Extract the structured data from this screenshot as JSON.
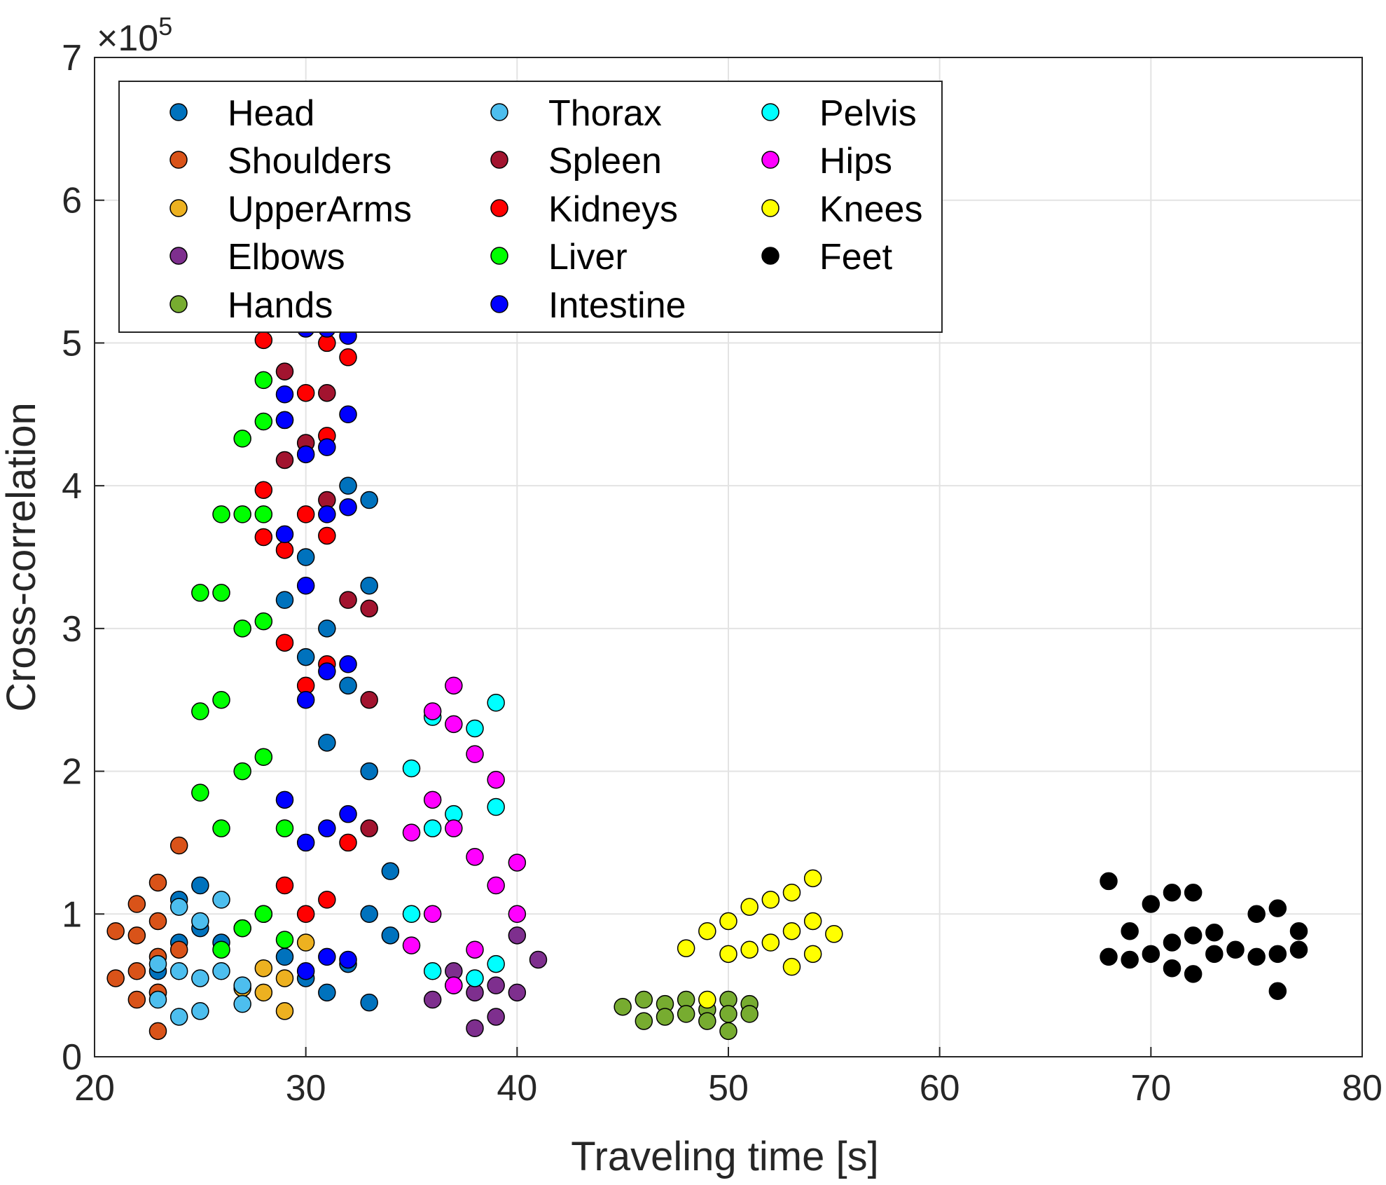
{
  "chart_data": {
    "type": "scatter",
    "title": "",
    "xlabel": "Traveling time [s]",
    "ylabel": "Cross-correlation",
    "y_exponent_label": "×10",
    "y_exponent_power": "5",
    "xlim": [
      20,
      80
    ],
    "ylim": [
      0,
      7
    ],
    "grid": true,
    "legend_position": "top-left",
    "x_ticks": [
      "20",
      "30",
      "40",
      "50",
      "60",
      "70",
      "80"
    ],
    "x_tick_values": [
      20,
      30,
      40,
      50,
      60,
      70,
      80
    ],
    "y_ticks": [
      "0",
      "1",
      "2",
      "3",
      "4",
      "5",
      "6",
      "7"
    ],
    "y_tick_values": [
      0,
      1,
      2,
      3,
      4,
      5,
      6,
      7
    ],
    "series": [
      {
        "name": "Head",
        "color": "#0072BD",
        "x": [
          23,
          23,
          24,
          24,
          25,
          25,
          26,
          27,
          28,
          29,
          29,
          30,
          30,
          30,
          31,
          31,
          31,
          32,
          32,
          32,
          33,
          33,
          33,
          33,
          33,
          34,
          34
        ],
        "y": [
          0.6,
          0.45,
          1.1,
          0.8,
          1.2,
          0.9,
          0.8,
          0.9,
          1.0,
          0.7,
          3.2,
          3.5,
          2.8,
          0.55,
          3.0,
          2.2,
          0.45,
          4.0,
          2.6,
          0.65,
          3.9,
          3.3,
          2.0,
          1.0,
          0.38,
          1.3,
          0.85
        ]
      },
      {
        "name": "Shoulders",
        "color": "#D95319",
        "x": [
          21,
          21,
          22,
          22,
          22,
          22,
          23,
          23,
          23,
          23,
          23,
          24,
          24
        ],
        "y": [
          0.88,
          0.55,
          1.07,
          0.85,
          0.6,
          0.4,
          1.22,
          0.95,
          0.7,
          0.45,
          0.18,
          1.48,
          0.75
        ]
      },
      {
        "name": "UpperArms",
        "color": "#EDB120",
        "x": [
          27,
          28,
          28,
          29,
          29,
          30
        ],
        "y": [
          0.48,
          0.62,
          0.45,
          0.55,
          0.32,
          0.8
        ]
      },
      {
        "name": "Elbows",
        "color": "#7E2F8E",
        "x": [
          36,
          37,
          37,
          38,
          38,
          39,
          39,
          40,
          40,
          41
        ],
        "y": [
          0.4,
          0.5,
          0.6,
          0.2,
          0.45,
          0.28,
          0.5,
          0.85,
          0.45,
          0.68
        ]
      },
      {
        "name": "Hands",
        "color": "#77AC30",
        "x": [
          45,
          46,
          46,
          47,
          47,
          48,
          48,
          49,
          49,
          50,
          50,
          50,
          51,
          51
        ],
        "y": [
          0.35,
          0.4,
          0.25,
          0.37,
          0.28,
          0.4,
          0.3,
          0.33,
          0.25,
          0.4,
          0.3,
          0.18,
          0.37,
          0.3
        ]
      },
      {
        "name": "Thorax",
        "color": "#4DBEEE",
        "x": [
          23,
          23,
          24,
          24,
          24,
          25,
          25,
          25,
          26,
          26,
          27,
          27
        ],
        "y": [
          0.65,
          0.4,
          1.05,
          0.6,
          0.28,
          0.95,
          0.55,
          0.32,
          1.1,
          0.6,
          0.5,
          0.37
        ]
      },
      {
        "name": "Spleen",
        "color": "#A2142F",
        "x": [
          29,
          29,
          30,
          31,
          31,
          32,
          33,
          33,
          33
        ],
        "y": [
          4.18,
          4.8,
          4.3,
          4.65,
          3.9,
          3.2,
          3.14,
          2.5,
          1.6
        ]
      },
      {
        "name": "Kidneys",
        "color": "#FF0000",
        "x": [
          28,
          28,
          28,
          29,
          29,
          29,
          29,
          30,
          30,
          30,
          30,
          31,
          31,
          31,
          31,
          31,
          32,
          32
        ],
        "y": [
          5.02,
          3.97,
          3.64,
          4.46,
          3.55,
          2.9,
          1.2,
          4.65,
          3.8,
          2.6,
          1.0,
          5.0,
          4.35,
          3.65,
          2.75,
          1.1,
          4.9,
          1.5
        ]
      },
      {
        "name": "Liver",
        "color": "#00FF00",
        "x": [
          25,
          25,
          25,
          26,
          26,
          26,
          26,
          26,
          27,
          27,
          27,
          27,
          27,
          28,
          28,
          28,
          28,
          28,
          28,
          29,
          29
        ],
        "y": [
          3.25,
          2.42,
          1.85,
          3.8,
          3.25,
          2.5,
          1.6,
          0.75,
          4.33,
          3.8,
          3.0,
          2.0,
          0.9,
          4.74,
          4.45,
          3.8,
          3.05,
          2.1,
          1.0,
          1.6,
          0.82
        ]
      },
      {
        "name": "Intestine",
        "color": "#0000FF",
        "x": [
          29,
          29,
          29,
          29,
          30,
          30,
          30,
          30,
          30,
          30,
          31,
          31,
          31,
          31,
          31,
          31,
          32,
          32,
          32,
          32,
          32,
          32
        ],
        "y": [
          4.64,
          4.46,
          3.66,
          1.8,
          5.1,
          4.22,
          3.3,
          2.5,
          1.5,
          0.6,
          5.1,
          4.27,
          3.8,
          2.7,
          1.6,
          0.7,
          5.05,
          4.5,
          3.85,
          2.75,
          1.7,
          0.68
        ]
      },
      {
        "name": "Pelvis",
        "color": "#00FFFF",
        "x": [
          35,
          35,
          36,
          36,
          36,
          37,
          38,
          38,
          39,
          39,
          39
        ],
        "y": [
          2.02,
          1.0,
          2.38,
          1.6,
          0.6,
          1.7,
          2.3,
          0.55,
          2.48,
          1.75,
          0.65
        ]
      },
      {
        "name": "Hips",
        "color": "#FF00FF",
        "x": [
          35,
          35,
          36,
          36,
          36,
          37,
          37,
          37,
          37,
          38,
          38,
          38,
          39,
          39,
          40,
          40
        ],
        "y": [
          1.57,
          0.78,
          2.42,
          1.8,
          1.0,
          2.6,
          2.33,
          1.6,
          0.5,
          2.12,
          1.4,
          0.75,
          1.94,
          1.2,
          1.36,
          1.0
        ]
      },
      {
        "name": "Knees",
        "color": "#FFFF00",
        "x": [
          48,
          49,
          49,
          50,
          50,
          51,
          51,
          52,
          52,
          53,
          53,
          53,
          54,
          54,
          54,
          55
        ],
        "y": [
          0.76,
          0.88,
          0.4,
          0.95,
          0.72,
          1.05,
          0.75,
          1.1,
          0.8,
          1.15,
          0.88,
          0.63,
          1.25,
          0.95,
          0.72,
          0.86
        ]
      },
      {
        "name": "Feet",
        "color": "#000000",
        "x": [
          68,
          68,
          69,
          69,
          70,
          70,
          71,
          71,
          71,
          72,
          72,
          72,
          73,
          73,
          74,
          75,
          75,
          76,
          76,
          76,
          77,
          77
        ],
        "y": [
          1.23,
          0.7,
          0.88,
          0.68,
          1.07,
          0.72,
          1.15,
          0.8,
          0.62,
          1.15,
          0.85,
          0.58,
          0.87,
          0.72,
          0.75,
          1.0,
          0.7,
          1.04,
          0.72,
          0.46,
          0.88,
          0.75
        ]
      }
    ]
  }
}
